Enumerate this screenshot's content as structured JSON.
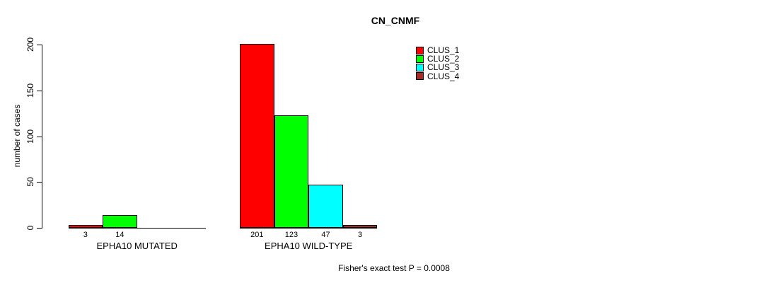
{
  "chart_data": {
    "type": "bar",
    "title": "CN_CNMF",
    "ylabel": "number of cases",
    "xlabel": "",
    "ylim": [
      0,
      200
    ],
    "yticks": [
      0,
      50,
      100,
      150,
      200
    ],
    "grid": false,
    "background": "#ffffff",
    "axis_color": "#000000",
    "text_color": "#000000",
    "categories": [
      "EPHA10 MUTATED",
      "EPHA10 WILD-TYPE"
    ],
    "series": [
      {
        "name": "CLUS_1",
        "color": "#ff0000",
        "values": [
          3,
          201
        ]
      },
      {
        "name": "CLUS_2",
        "color": "#00ff00",
        "values": [
          14,
          123
        ]
      },
      {
        "name": "CLUS_3",
        "color": "#00ffff",
        "values": [
          0,
          47
        ]
      },
      {
        "name": "CLUS_4",
        "color": "#a52a2a",
        "values": [
          0,
          3
        ]
      }
    ],
    "bar_value_labels": [
      [
        "3",
        "14",
        "",
        ""
      ],
      [
        "201",
        "123",
        "47",
        "3"
      ]
    ],
    "legend_position": "top-right",
    "legend_entries": [
      "CLUS_1",
      "CLUS_2",
      "CLUS_3",
      "CLUS_4"
    ],
    "annotation": "Fisher's exact test P = 0.0008"
  }
}
